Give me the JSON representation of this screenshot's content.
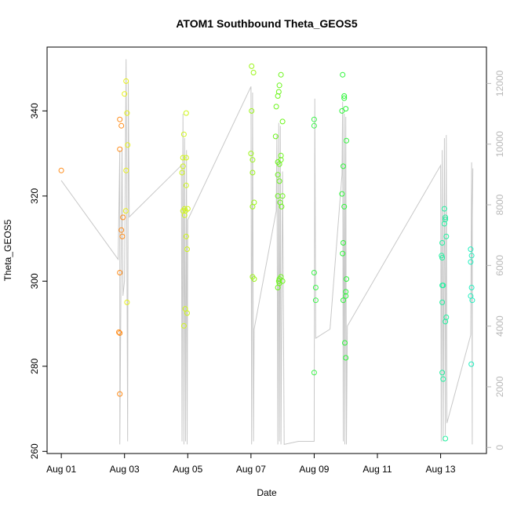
{
  "chart_data": {
    "type": "scatter",
    "title": "ATOM1 Southbound Theta_GEOS5",
    "xlabel": "Date",
    "ylabel": "Theta_GEOS5",
    "x_unit": "days from Aug 01",
    "xlim": [
      -0.45,
      13.45
    ],
    "ylim": [
      259.5,
      355
    ],
    "y2lim": [
      -200,
      13200
    ],
    "x_ticks": [
      {
        "value": 0,
        "label": "Aug 01"
      },
      {
        "value": 2,
        "label": "Aug 03"
      },
      {
        "value": 4,
        "label": "Aug 05"
      },
      {
        "value": 6,
        "label": "Aug 07"
      },
      {
        "value": 8,
        "label": "Aug 09"
      },
      {
        "value": 10,
        "label": "Aug 11"
      },
      {
        "value": 12,
        "label": "Aug 13"
      }
    ],
    "y_ticks": [
      {
        "value": 260,
        "label": "260"
      },
      {
        "value": 280,
        "label": "280"
      },
      {
        "value": 300,
        "label": "300"
      },
      {
        "value": 320,
        "label": "320"
      },
      {
        "value": 340,
        "label": "340"
      }
    ],
    "y2_ticks": [
      {
        "value": 0,
        "label": "0"
      },
      {
        "value": 2000,
        "label": "2000"
      },
      {
        "value": 4000,
        "label": "4000"
      },
      {
        "value": 6000,
        "label": "6000"
      },
      {
        "value": 8000,
        "label": "8000"
      },
      {
        "value": 10000,
        "label": "10000"
      },
      {
        "value": 12000,
        "label": "12000"
      }
    ],
    "colors": {
      "axis": "#000000",
      "altitude_line": "#c8c8c8",
      "right_axis": "#b8b8b8"
    },
    "series": [
      {
        "color": "#ff8c1a",
        "points": [
          [
            0.0,
            326
          ],
          [
            1.85,
            338
          ],
          [
            1.9,
            336.5
          ],
          [
            1.85,
            331
          ],
          [
            1.95,
            315
          ],
          [
            1.9,
            312
          ],
          [
            1.93,
            310.5
          ],
          [
            1.85,
            302
          ],
          [
            1.82,
            288
          ],
          [
            1.85,
            287.8
          ],
          [
            1.85,
            273.5
          ]
        ]
      },
      {
        "color": "#e6f01a",
        "points": [
          [
            2.0,
            344
          ],
          [
            2.05,
            347
          ],
          [
            2.08,
            339.5
          ],
          [
            2.1,
            332
          ],
          [
            2.05,
            326
          ],
          [
            2.04,
            316.5
          ],
          [
            2.08,
            295
          ]
        ]
      },
      {
        "color": "#cff51a",
        "points": [
          [
            3.95,
            339.5
          ],
          [
            3.88,
            334.5
          ],
          [
            3.85,
            329
          ],
          [
            3.95,
            329
          ],
          [
            3.85,
            327
          ],
          [
            3.82,
            325.5
          ],
          [
            3.95,
            322.5
          ],
          [
            3.9,
            317
          ],
          [
            4.0,
            317
          ],
          [
            3.85,
            316.5
          ],
          [
            3.93,
            316.5
          ],
          [
            3.9,
            315.5
          ],
          [
            3.95,
            310.5
          ],
          [
            3.98,
            307.5
          ],
          [
            3.92,
            293.5
          ],
          [
            3.98,
            292.5
          ],
          [
            3.88,
            289.5
          ]
        ]
      },
      {
        "color": "#9cf51a",
        "points": [
          [
            6.02,
            350.5
          ],
          [
            6.08,
            349
          ],
          [
            6.02,
            340
          ],
          [
            6.0,
            330
          ],
          [
            6.05,
            328.5
          ],
          [
            6.05,
            325.5
          ],
          [
            6.1,
            318.5
          ],
          [
            6.05,
            317.5
          ],
          [
            6.05,
            301
          ],
          [
            6.1,
            300.5
          ]
        ]
      },
      {
        "color": "#6bf51a",
        "points": [
          [
            6.95,
            348.5
          ],
          [
            6.9,
            346
          ],
          [
            6.88,
            344.5
          ],
          [
            6.85,
            343.5
          ],
          [
            6.8,
            341
          ],
          [
            7.0,
            337.5
          ],
          [
            6.78,
            334
          ],
          [
            6.95,
            329.5
          ],
          [
            6.95,
            328.5
          ],
          [
            6.85,
            328
          ],
          [
            6.9,
            327.5
          ],
          [
            6.85,
            325
          ],
          [
            6.9,
            323.5
          ],
          [
            6.85,
            320
          ],
          [
            7.0,
            320
          ],
          [
            6.92,
            318.5
          ],
          [
            6.97,
            317.5
          ],
          [
            6.95,
            301
          ],
          [
            6.9,
            300.5
          ],
          [
            7.0,
            300
          ],
          [
            6.88,
            300
          ],
          [
            6.9,
            299.5
          ],
          [
            6.85,
            298.5
          ]
        ]
      },
      {
        "color": "#3cf54a",
        "points": [
          [
            8.0,
            338
          ],
          [
            8.0,
            336.5
          ],
          [
            8.0,
            302
          ],
          [
            8.05,
            298.5
          ],
          [
            8.05,
            295.5
          ],
          [
            8.0,
            278.5
          ]
        ]
      },
      {
        "color": "#2ef53a",
        "points": [
          [
            8.9,
            348.5
          ],
          [
            8.95,
            343.5
          ],
          [
            8.95,
            343
          ],
          [
            9.0,
            340.5
          ],
          [
            8.88,
            340
          ],
          [
            9.02,
            333
          ],
          [
            8.92,
            327
          ],
          [
            8.88,
            320.5
          ],
          [
            8.95,
            317.5
          ],
          [
            8.92,
            309
          ],
          [
            8.9,
            306.5
          ],
          [
            9.02,
            300.5
          ],
          [
            9.0,
            297.5
          ],
          [
            9.0,
            296.5
          ],
          [
            8.92,
            295.5
          ],
          [
            8.97,
            285.5
          ],
          [
            9.0,
            282
          ]
        ]
      },
      {
        "color": "#22f0a0",
        "points": [
          [
            12.12,
            317
          ],
          [
            12.15,
            315
          ],
          [
            12.15,
            314.5
          ],
          [
            12.12,
            313.5
          ],
          [
            12.18,
            310.5
          ],
          [
            12.05,
            309
          ],
          [
            12.03,
            306
          ],
          [
            12.05,
            305.5
          ],
          [
            12.05,
            299
          ],
          [
            12.08,
            299
          ],
          [
            12.05,
            295
          ],
          [
            12.18,
            291.5
          ],
          [
            12.15,
            290.5
          ],
          [
            12.05,
            278.5
          ],
          [
            12.08,
            277
          ],
          [
            12.15,
            263
          ]
        ]
      },
      {
        "color": "#22f0c0",
        "points": [
          [
            12.95,
            307.5
          ],
          [
            12.98,
            306
          ],
          [
            12.95,
            304.5
          ],
          [
            12.98,
            298.5
          ],
          [
            12.95,
            296.5
          ],
          [
            13.0,
            295.5
          ],
          [
            12.97,
            280.5
          ]
        ]
      }
    ],
    "altitude_line": {
      "path": [
        [
          0.0,
          8800
        ],
        [
          1.8,
          6200
        ],
        [
          1.85,
          9800
        ],
        [
          1.85,
          100
        ],
        [
          1.92,
          9900
        ],
        [
          1.95,
          5000
        ],
        [
          2.0,
          5500
        ],
        [
          2.05,
          12800
        ],
        [
          2.1,
          200
        ],
        [
          2.12,
          12100
        ],
        [
          2.15,
          7600
        ],
        [
          3.8,
          9300
        ],
        [
          3.82,
          200
        ],
        [
          3.85,
          11000
        ],
        [
          3.88,
          100
        ],
        [
          3.9,
          10200
        ],
        [
          3.93,
          200
        ],
        [
          3.96,
          9800
        ],
        [
          3.98,
          100
        ],
        [
          4.0,
          7500
        ],
        [
          6.0,
          11900
        ],
        [
          6.02,
          100
        ],
        [
          6.05,
          11700
        ],
        [
          6.08,
          200
        ],
        [
          6.1,
          3900
        ],
        [
          6.8,
          7800
        ],
        [
          6.82,
          10300
        ],
        [
          6.85,
          100
        ],
        [
          6.88,
          10700
        ],
        [
          6.9,
          200
        ],
        [
          6.93,
          10600
        ],
        [
          6.95,
          100
        ],
        [
          7.0,
          9100
        ],
        [
          7.05,
          100
        ],
        [
          7.5,
          200
        ],
        [
          8.0,
          200
        ],
        [
          8.02,
          11500
        ],
        [
          8.05,
          3600
        ],
        [
          8.5,
          3900
        ],
        [
          8.88,
          9000
        ],
        [
          8.9,
          11400
        ],
        [
          8.92,
          200
        ],
        [
          8.95,
          11000
        ],
        [
          8.97,
          100
        ],
        [
          9.0,
          10900
        ],
        [
          9.02,
          100
        ],
        [
          9.05,
          4000
        ],
        [
          12.0,
          9300
        ],
        [
          12.02,
          200
        ],
        [
          12.05,
          9800
        ],
        [
          12.08,
          200
        ],
        [
          12.12,
          10200
        ],
        [
          12.15,
          400
        ],
        [
          12.18,
          10300
        ],
        [
          12.2,
          800
        ],
        [
          12.95,
          3700
        ],
        [
          12.98,
          9400
        ],
        [
          13.0,
          100
        ],
        [
          13.0,
          7600
        ],
        [
          13.02,
          9200
        ]
      ]
    }
  }
}
